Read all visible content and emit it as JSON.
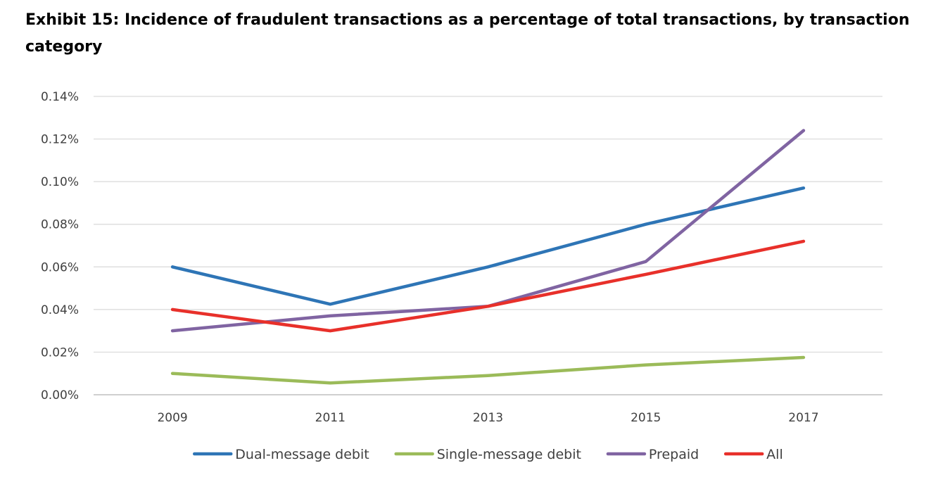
{
  "exhibit": {
    "title": "Exhibit 15: Incidence of fraudulent transactions as a percentage of total transactions, by transaction category"
  },
  "chart_data": {
    "type": "line",
    "title": "Exhibit 15: Incidence of fraudulent transactions as a percentage of total transactions, by transaction category",
    "xlabel": "",
    "ylabel": "",
    "categories": [
      "2009",
      "2011",
      "2013",
      "2015",
      "2017"
    ],
    "ylim": [
      0,
      0.14
    ],
    "y_ticks": [
      0,
      0.02,
      0.04,
      0.06,
      0.08,
      0.1,
      0.12,
      0.14
    ],
    "y_tick_labels": [
      "0.00%",
      "0.02%",
      "0.04%",
      "0.06%",
      "0.08%",
      "0.10%",
      "0.12%",
      "0.14%"
    ],
    "y_unit": "%",
    "grid": true,
    "legend_position": "bottom",
    "series": [
      {
        "name": "Dual-message debit",
        "color": "#2E75B6",
        "values": [
          0.06,
          0.0425,
          0.06,
          0.08,
          0.097
        ]
      },
      {
        "name": "Single-message debit",
        "color": "#9BBB59",
        "values": [
          0.01,
          0.0055,
          0.009,
          0.014,
          0.0175
        ]
      },
      {
        "name": "Prepaid",
        "color": "#8064A2",
        "values": [
          0.03,
          0.037,
          0.0415,
          0.0625,
          0.124
        ]
      },
      {
        "name": "All",
        "color": "#E8302A",
        "values": [
          0.04,
          0.03,
          0.0415,
          0.0565,
          0.072
        ]
      }
    ]
  }
}
